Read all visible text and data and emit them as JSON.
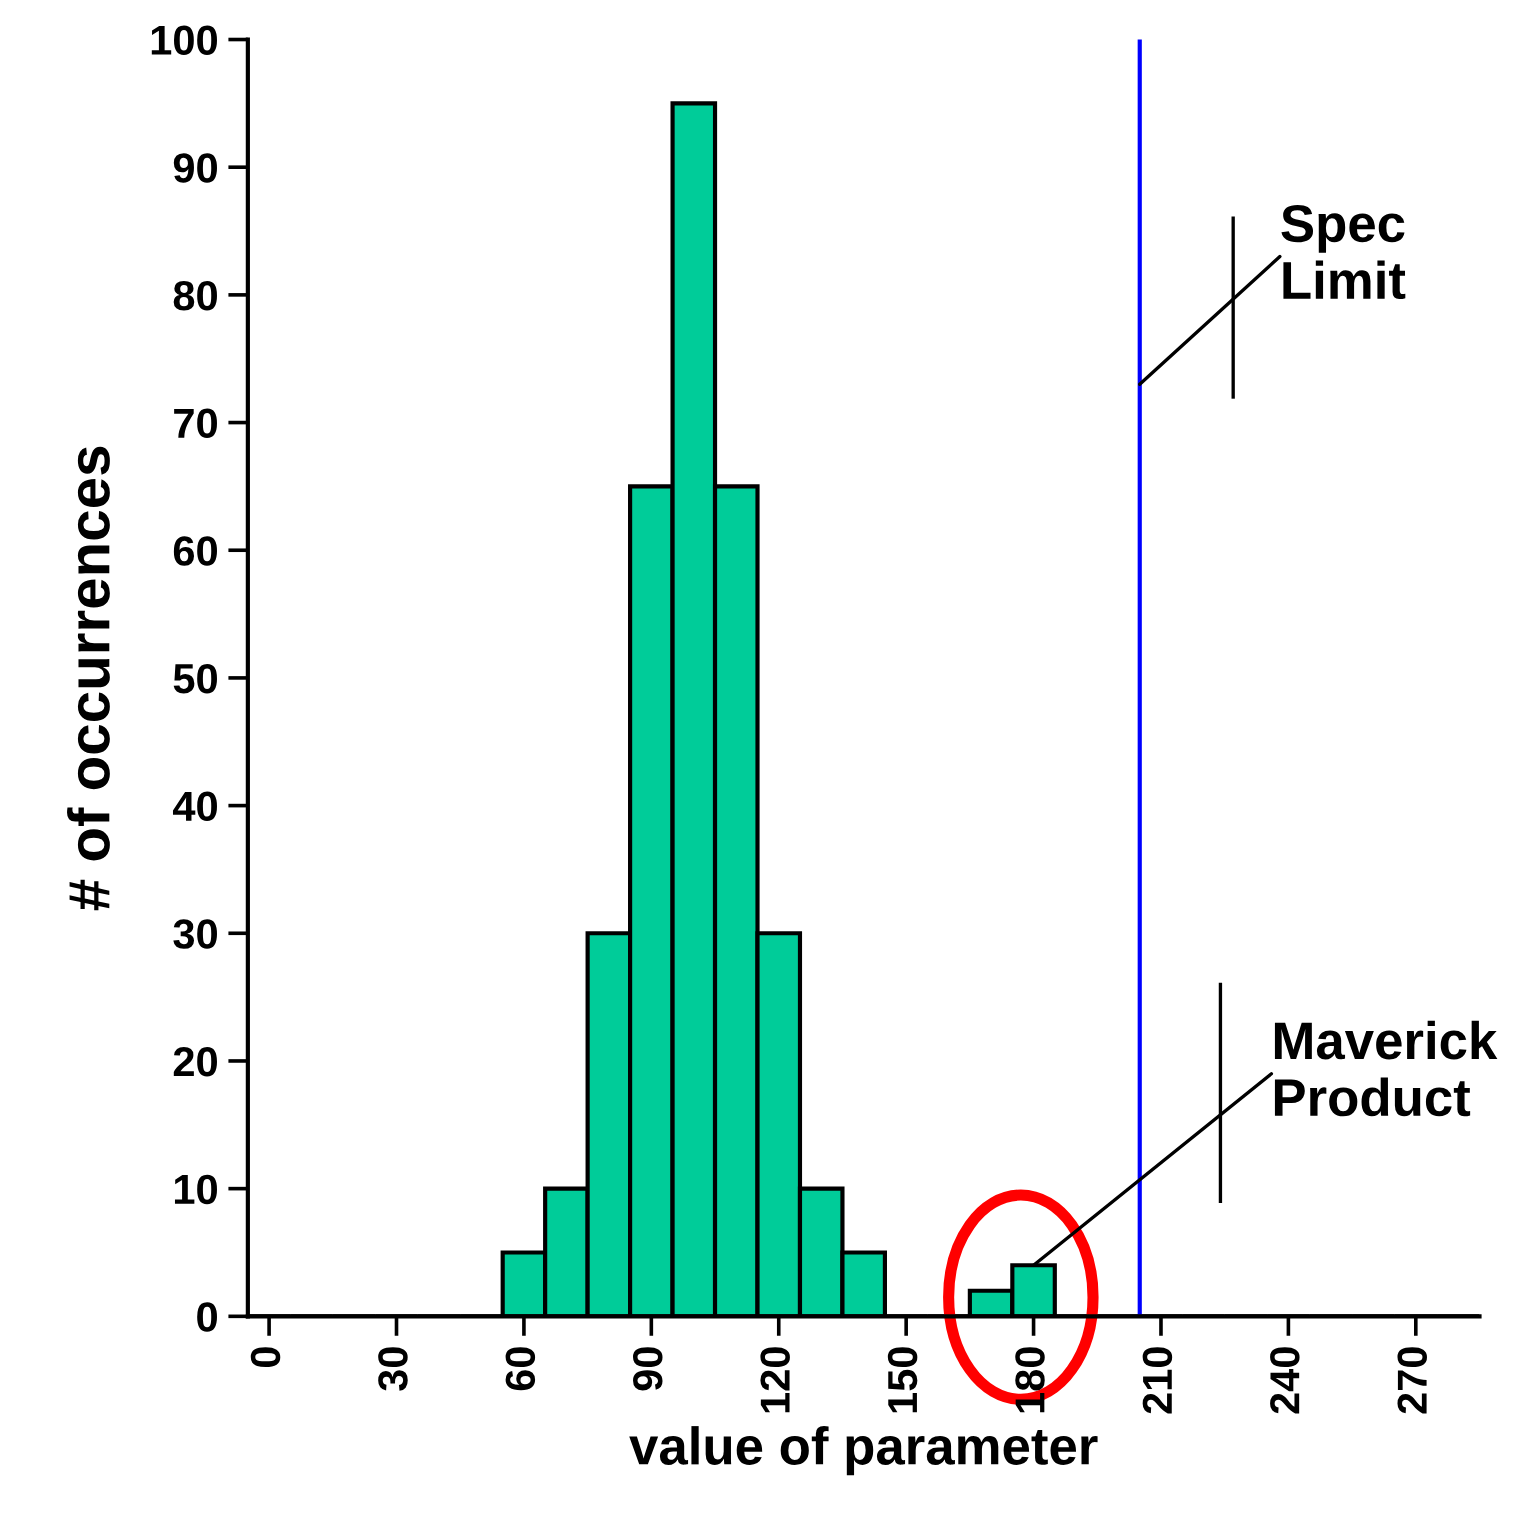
{
  "chart_data": {
    "type": "histogram",
    "xlabel": "value of parameter",
    "ylabel": "# of occurrences",
    "bins": [
      -5,
      5,
      15,
      25,
      35,
      45,
      55,
      65,
      75,
      85,
      95,
      105,
      115,
      125,
      135,
      145,
      155,
      165,
      175,
      185,
      195,
      205,
      215,
      225,
      235,
      245,
      255,
      265,
      275,
      285
    ],
    "values": [
      0,
      0,
      0,
      0,
      0,
      0,
      5,
      10,
      30,
      65,
      95,
      65,
      30,
      10,
      5,
      0,
      0,
      2,
      4,
      0,
      0,
      0,
      0,
      0,
      0,
      0,
      0,
      0,
      0
    ],
    "color": "#00cc99",
    "xlim": [
      -5,
      285
    ],
    "xticks": [
      0,
      30,
      60,
      90,
      120,
      150,
      180,
      210,
      240,
      270
    ],
    "ylim": [
      0,
      100
    ],
    "yticks": [
      0,
      10,
      20,
      30,
      40,
      50,
      60,
      70,
      80,
      90,
      100
    ],
    "grid": false,
    "ref_lines": [
      {
        "axis": "x",
        "value": 205,
        "label": "Spec\nLimit",
        "color": "#0000ff"
      }
    ],
    "annotations": [
      {
        "text": "Maverick\nProduct",
        "x": 180,
        "y": 4
      }
    ]
  }
}
